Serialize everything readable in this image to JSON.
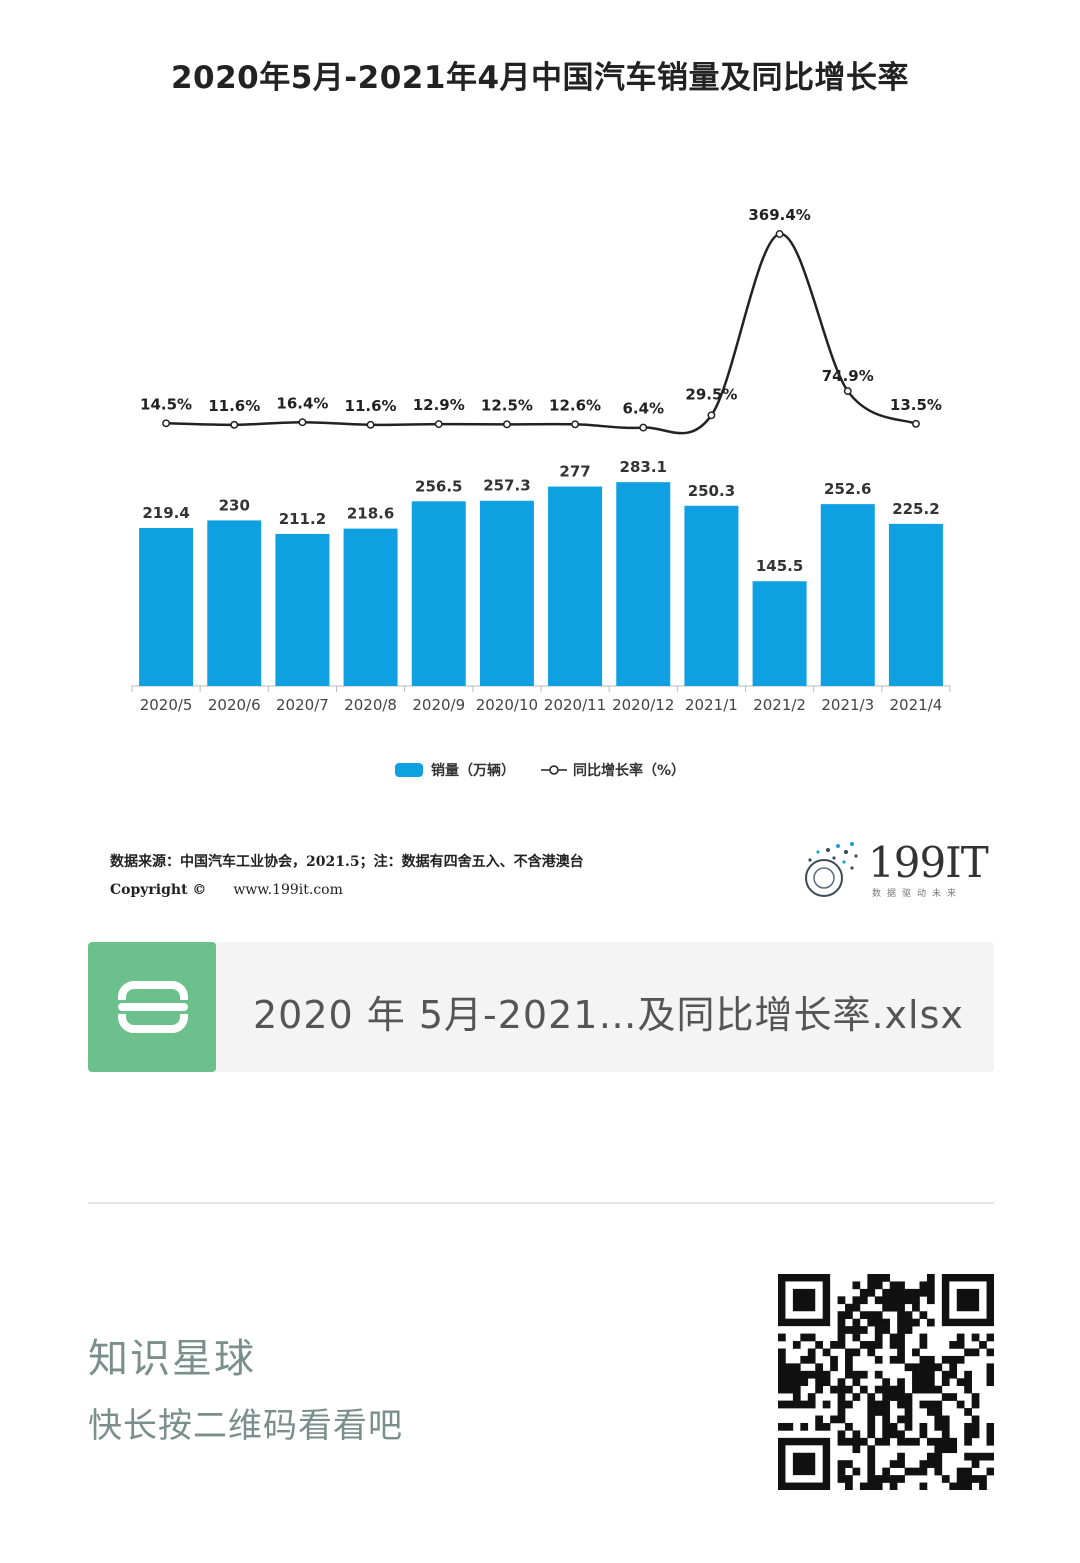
{
  "title": "2020年5月-2021年4月中国汽车销量及同比增长率",
  "chart_data": {
    "type": "bar+line",
    "title": "2020年5月-2021年4月中国汽车销量及同比增长率",
    "categories": [
      "2020/5",
      "2020/6",
      "2020/7",
      "2020/8",
      "2020/9",
      "2020/10",
      "2020/11",
      "2020/12",
      "2021/1",
      "2021/2",
      "2021/3",
      "2021/4"
    ],
    "series": [
      {
        "name": "销量（万辆）",
        "type": "bar",
        "values": [
          219.4,
          230,
          211.2,
          218.6,
          256.5,
          257.3,
          277,
          283.1,
          250.3,
          145.5,
          252.6,
          225.2
        ],
        "labels": [
          "219.4",
          "230",
          "211.2",
          "218.6",
          "256.5",
          "257.3",
          "277",
          "283.1",
          "250.3",
          "145.5",
          "252.6",
          "225.2"
        ]
      },
      {
        "name": "同比增长率（%）",
        "type": "line",
        "values": [
          14.5,
          11.6,
          16.4,
          11.6,
          12.9,
          12.5,
          12.6,
          6.4,
          29.5,
          369.4,
          74.9,
          13.5
        ],
        "labels": [
          "14.5%",
          "11.6%",
          "16.4%",
          "11.6%",
          "12.9%",
          "12.5%",
          "12.6%",
          "6.4%",
          "29.5%",
          "369.4%",
          "74.9%",
          "13.5%"
        ]
      }
    ],
    "legend_position": "bottom",
    "grid": false
  },
  "colors": {
    "bar": "#0ea0e0",
    "line": "#222222"
  },
  "legend": {
    "bar_label": "销量（万辆）",
    "line_label": "同比增长率（%）"
  },
  "source": {
    "line1": "数据来源：中国汽车工业协会，2021.5；注：数据有四舍五入、不含港澳台",
    "copyright_label": "Copyright ©",
    "site": "www.199it.com"
  },
  "logo": {
    "text": "199IT",
    "sub": "数据驱动未来"
  },
  "file": {
    "name": "2020 年 5月-2021…及同比增长率.xlsx",
    "icon": "spreadsheet-s-icon"
  },
  "footer": {
    "title": "知识星球",
    "hint": "快长按二维码看看吧",
    "qr_icon": "qr-code-icon"
  }
}
